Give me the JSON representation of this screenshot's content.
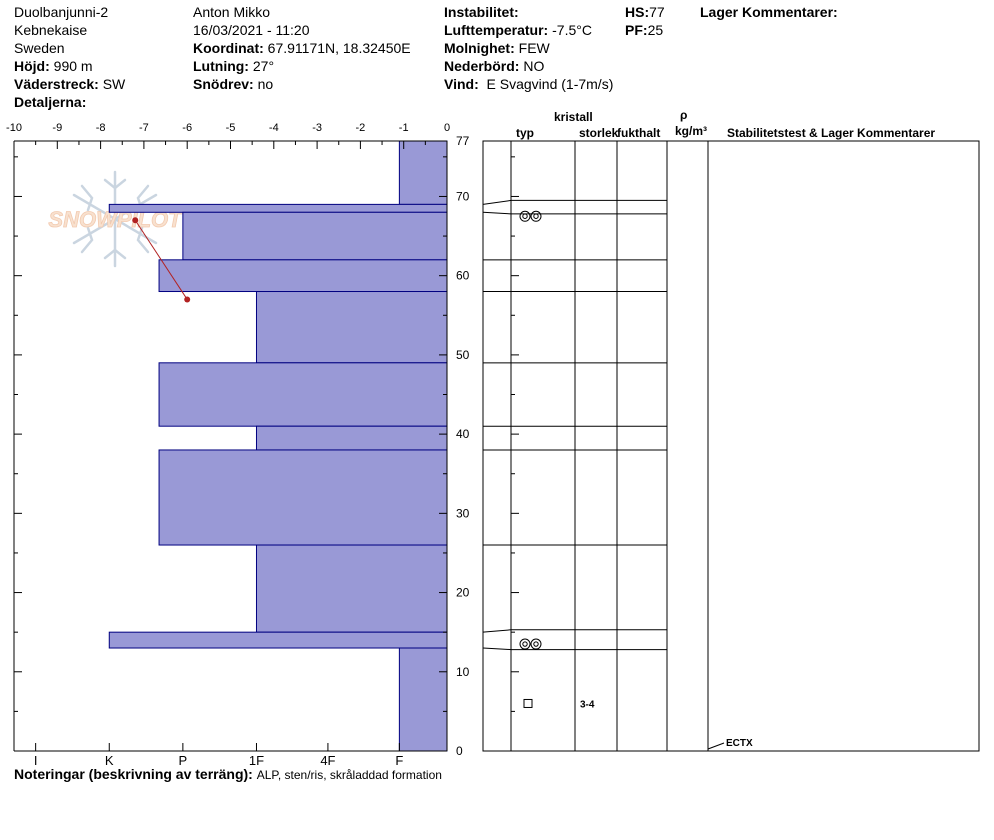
{
  "header": {
    "location": "Duolbanjunni-2",
    "region": "Kebnekaise",
    "country": "Sweden",
    "observer": "Anton Mikko",
    "datetime": "16/03/2021 - 11:20",
    "elevation_label": "Höjd:",
    "elevation_value": "990 m",
    "aspect_label": "Väderstreck:",
    "aspect_value": "SW",
    "details_label": "Detaljerna:",
    "coord_label": "Koordinat:",
    "coord_value": "67.91171N, 18.32450E",
    "slope_label": "Lutning:",
    "slope_value": "27°",
    "drift_label": "Snödrev:",
    "drift_value": "no",
    "instability_label": "Instabilitet:",
    "airtemp_label": "Lufttemperatur:",
    "airtemp_value": "-7.5°C",
    "sky_label": "Molnighet:",
    "sky_value": "FEW",
    "precip_label": "Nederbörd:",
    "precip_value": "NO",
    "wind_label": "Vind:",
    "wind_value": "E Svagvind (1-7m/s)",
    "hs_label": "HS:",
    "hs_value": "77",
    "pf_label": "PF:",
    "pf_value": "25",
    "layer_comments_label": "Lager Kommentarer:"
  },
  "columns": {
    "crystal": "kristall",
    "type": "typ",
    "size": "storlek",
    "moisture": "fukthalt",
    "rho": "ρ",
    "density_unit": "kg/m³",
    "stability": "Stabilitetstest & Lager Kommentarer"
  },
  "footer": {
    "notes_label": "Noteringar (beskrivning av terräng):",
    "notes_value": "ALP, sten/ris, skråladdad formation"
  },
  "logo_text": "SNOWPILOT",
  "chart_data": {
    "type": "bar",
    "temperature_axis": {
      "ticks": [
        -10,
        -9,
        -8,
        -7,
        -6,
        -5,
        -4,
        -3,
        -2,
        -1,
        0
      ],
      "range": [
        -10,
        0
      ]
    },
    "hardness_axis": {
      "labels": [
        "I",
        "K",
        "P",
        "1F",
        "4F",
        "F"
      ],
      "positions": [
        9.5,
        7.8,
        6.1,
        4.4,
        2.75,
        1.1
      ]
    },
    "depth_axis": {
      "ticks": [
        0,
        10,
        20,
        30,
        40,
        50,
        60,
        70,
        77
      ],
      "range": [
        0,
        77
      ],
      "color": "#000000"
    },
    "bar_color": "#9999d6",
    "bar_edge_color": "#000080",
    "layers": [
      {
        "top": 77,
        "bottom": 69,
        "hardness": 1.1
      },
      {
        "top": 69,
        "bottom": 68,
        "hardness": 7.8
      },
      {
        "top": 68,
        "bottom": 62,
        "hardness": 6.1
      },
      {
        "top": 62,
        "bottom": 58,
        "hardness": 6.65
      },
      {
        "top": 58,
        "bottom": 49,
        "hardness": 4.4
      },
      {
        "top": 49,
        "bottom": 41,
        "hardness": 6.65
      },
      {
        "top": 41,
        "bottom": 38,
        "hardness": 4.4
      },
      {
        "top": 38,
        "bottom": 26,
        "hardness": 6.65
      },
      {
        "top": 26,
        "bottom": 15,
        "hardness": 4.4
      },
      {
        "top": 15,
        "bottom": 13,
        "hardness": 7.8
      },
      {
        "top": 13,
        "bottom": 0,
        "hardness": 1.1
      }
    ],
    "temperature_profile": [
      {
        "depth": 67,
        "temp": -7.2
      },
      {
        "depth": 57,
        "temp": -6.0
      }
    ],
    "temperature_color": "#b22222",
    "crystal_annotations": [
      {
        "depth": 67.5,
        "type": "rounded-grains"
      },
      {
        "depth": 13.5,
        "type": "rounded-grains"
      },
      {
        "depth": 6,
        "type": "faceted-crystals",
        "size": "3-4"
      }
    ],
    "stability_tests": [
      {
        "depth": 0,
        "label": "ECTX"
      }
    ]
  }
}
